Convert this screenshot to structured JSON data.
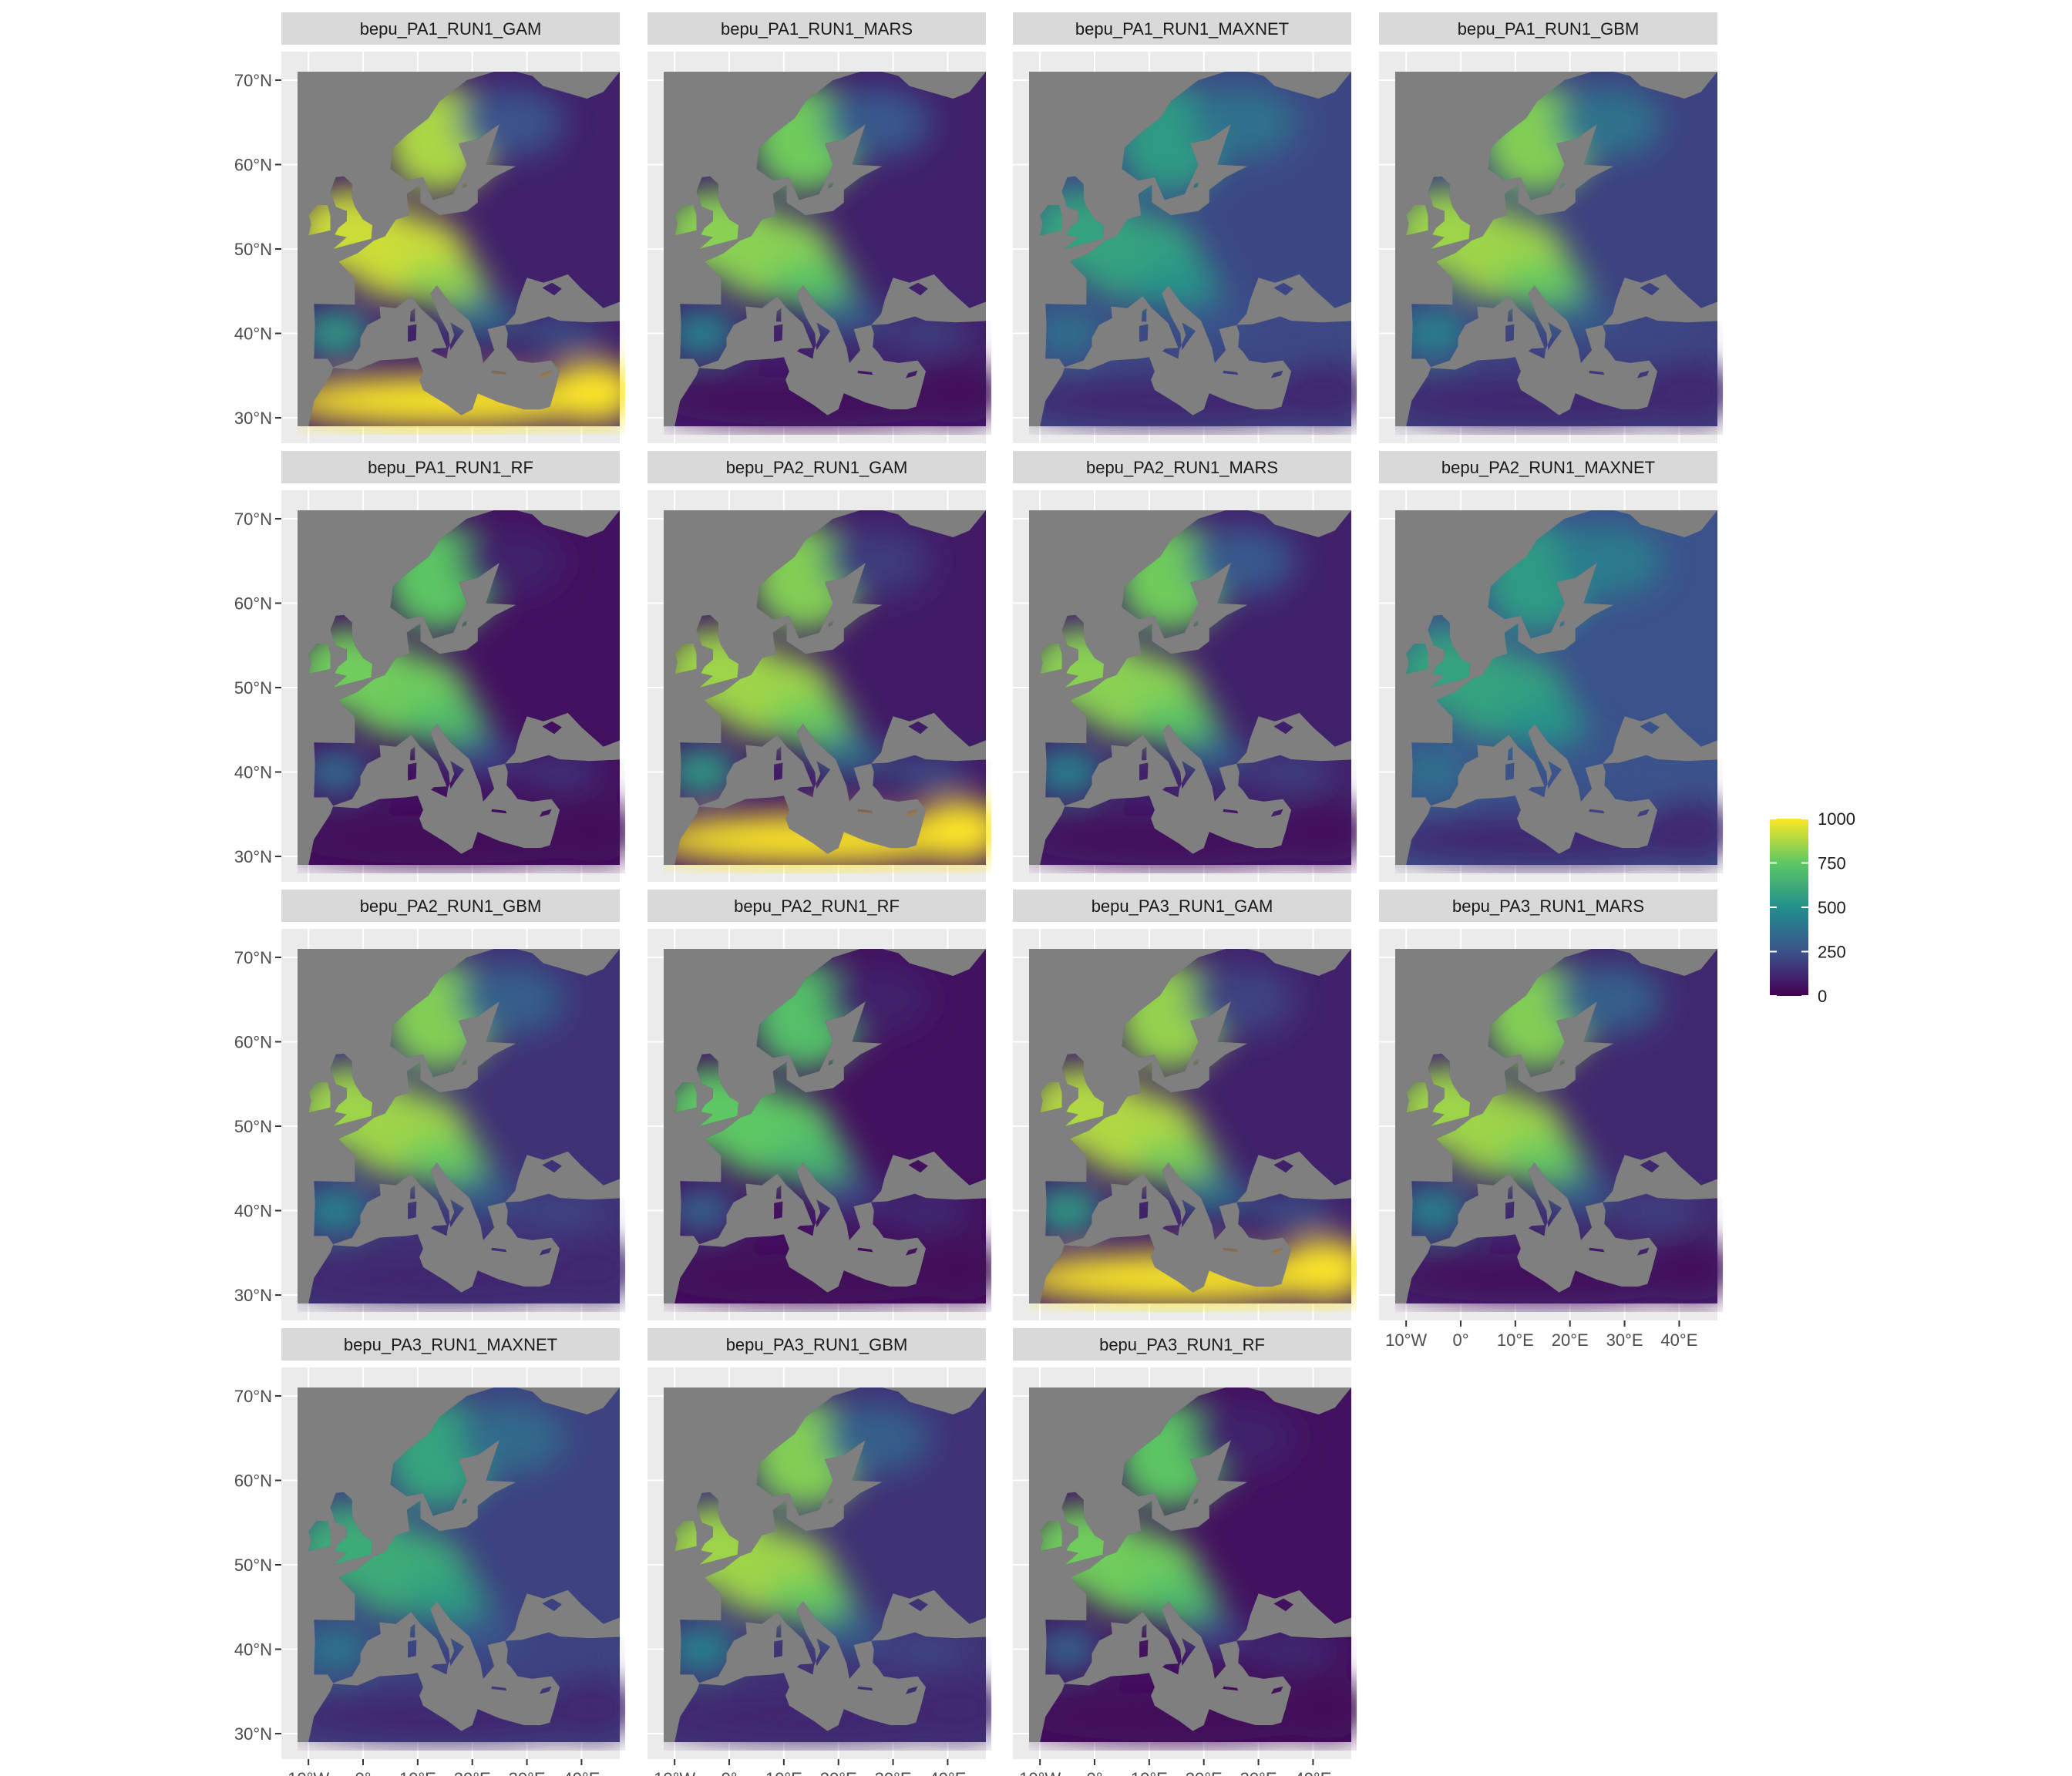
{
  "figure": {
    "panel_titles": [
      "bepu_PA1_RUN1_GAM",
      "bepu_PA1_RUN1_MARS",
      "bepu_PA1_RUN1_MAXNET",
      "bepu_PA1_RUN1_GBM",
      "bepu_PA1_RUN1_RF",
      "bepu_PA2_RUN1_GAM",
      "bepu_PA2_RUN1_MARS",
      "bepu_PA2_RUN1_MAXNET",
      "bepu_PA2_RUN1_GBM",
      "bepu_PA2_RUN1_RF",
      "bepu_PA3_RUN1_GAM",
      "bepu_PA3_RUN1_MARS",
      "bepu_PA3_RUN1_MAXNET",
      "bepu_PA3_RUN1_GBM",
      "bepu_PA3_RUN1_RF"
    ],
    "lat_ticks": [
      "70°N",
      "60°N",
      "50°N",
      "40°N",
      "30°N"
    ],
    "lat_values": [
      70,
      60,
      50,
      40,
      30
    ],
    "lon_ticks": [
      "10°W",
      "0°",
      "10°E",
      "20°E",
      "30°E",
      "40°E"
    ],
    "lon_values": [
      -10,
      0,
      10,
      20,
      30,
      40
    ],
    "extent": {
      "lon": [
        -12,
        47
      ],
      "lat": [
        29,
        71
      ]
    },
    "legend": {
      "labels": [
        "1000",
        "750",
        "500",
        "250",
        "0"
      ],
      "values": [
        1000,
        750,
        500,
        250,
        0
      ],
      "range": [
        0,
        1000
      ],
      "palette": [
        "#440154",
        "#3b528b",
        "#21908c",
        "#5dc863",
        "#fde725"
      ]
    },
    "colors": {
      "strip": "#d9d9d9",
      "panel_bg": "#ebebeb",
      "sea": "#7f7f7f",
      "grid": "#ffffff",
      "tick_text": "#4d4d4d",
      "strip_text": "#1a1a1a"
    },
    "panel_scores": [
      {
        "nw": 0.92,
        "ne": 0.25,
        "sw": 0.55,
        "africa": 1.0,
        "east": 0.1
      },
      {
        "nw": 0.82,
        "ne": 0.28,
        "sw": 0.45,
        "africa": 0.03,
        "east": 0.1
      },
      {
        "nw": 0.58,
        "ne": 0.38,
        "sw": 0.38,
        "africa": 0.12,
        "east": 0.22
      },
      {
        "nw": 0.85,
        "ne": 0.38,
        "sw": 0.45,
        "africa": 0.12,
        "east": 0.2
      },
      {
        "nw": 0.78,
        "ne": 0.1,
        "sw": 0.35,
        "africa": 0.02,
        "east": 0.05
      },
      {
        "nw": 0.85,
        "ne": 0.18,
        "sw": 0.55,
        "africa": 1.0,
        "east": 0.08
      },
      {
        "nw": 0.82,
        "ne": 0.28,
        "sw": 0.45,
        "africa": 0.03,
        "east": 0.1
      },
      {
        "nw": 0.58,
        "ne": 0.42,
        "sw": 0.38,
        "africa": 0.12,
        "east": 0.25
      },
      {
        "nw": 0.85,
        "ne": 0.3,
        "sw": 0.45,
        "africa": 0.12,
        "east": 0.15
      },
      {
        "nw": 0.75,
        "ne": 0.1,
        "sw": 0.32,
        "africa": 0.02,
        "east": 0.05
      },
      {
        "nw": 0.88,
        "ne": 0.2,
        "sw": 0.55,
        "africa": 1.0,
        "east": 0.1
      },
      {
        "nw": 0.85,
        "ne": 0.3,
        "sw": 0.45,
        "africa": 0.03,
        "east": 0.12
      },
      {
        "nw": 0.62,
        "ne": 0.35,
        "sw": 0.4,
        "africa": 0.12,
        "east": 0.2
      },
      {
        "nw": 0.85,
        "ne": 0.3,
        "sw": 0.45,
        "africa": 0.12,
        "east": 0.15
      },
      {
        "nw": 0.78,
        "ne": 0.1,
        "sw": 0.32,
        "africa": 0.02,
        "east": 0.05
      }
    ]
  }
}
